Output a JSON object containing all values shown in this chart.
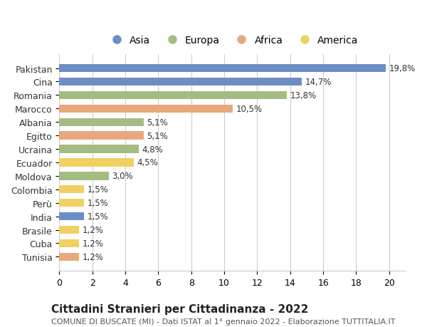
{
  "countries": [
    "Pakistan",
    "Cina",
    "Romania",
    "Marocco",
    "Albania",
    "Egitto",
    "Ucraina",
    "Ecuador",
    "Moldova",
    "Colombia",
    "Perù",
    "India",
    "Brasile",
    "Cuba",
    "Tunisia"
  ],
  "values": [
    19.8,
    14.7,
    13.8,
    10.5,
    5.1,
    5.1,
    4.8,
    4.5,
    3.0,
    1.5,
    1.5,
    1.5,
    1.2,
    1.2,
    1.2
  ],
  "labels": [
    "19,8%",
    "14,7%",
    "13,8%",
    "10,5%",
    "5,1%",
    "5,1%",
    "4,8%",
    "4,5%",
    "3,0%",
    "1,5%",
    "1,5%",
    "1,5%",
    "1,2%",
    "1,2%",
    "1,2%"
  ],
  "continents": [
    "Asia",
    "Asia",
    "Europa",
    "Africa",
    "Europa",
    "Africa",
    "Europa",
    "America",
    "Europa",
    "America",
    "America",
    "Asia",
    "America",
    "America",
    "Africa"
  ],
  "colors": {
    "Asia": "#6d8ec4",
    "Europa": "#a4bc82",
    "Africa": "#e8a87c",
    "America": "#f0d060"
  },
  "legend_order": [
    "Asia",
    "Europa",
    "Africa",
    "America"
  ],
  "title": "Cittadini Stranieri per Cittadinanza - 2022",
  "subtitle": "COMUNE DI BUSCATE (MI) - Dati ISTAT al 1° gennaio 2022 - Elaborazione TUTTITALIA.IT",
  "xlim": [
    0,
    21
  ],
  "xticks": [
    0,
    2,
    4,
    6,
    8,
    10,
    12,
    14,
    16,
    18,
    20
  ],
  "background_color": "#ffffff",
  "grid_color": "#cccccc",
  "title_fontsize": 11,
  "subtitle_fontsize": 8,
  "label_fontsize": 8.5,
  "tick_fontsize": 9
}
